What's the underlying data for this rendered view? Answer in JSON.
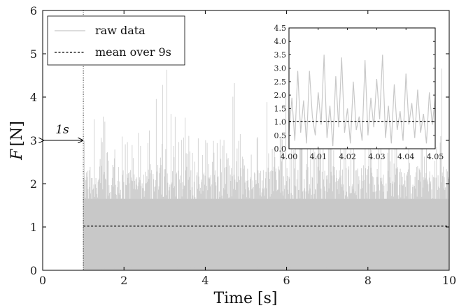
{
  "chart_data": [
    {
      "type": "line",
      "xlabel": "Time [s]",
      "ylabel": "F [N]",
      "xlim": [
        0,
        10
      ],
      "ylim": [
        0,
        6
      ],
      "xticks": [
        "0",
        "2",
        "4",
        "6",
        "8",
        "10"
      ],
      "yticks": [
        "0",
        "1",
        "2",
        "3",
        "4",
        "5",
        "6"
      ],
      "grid": false,
      "legend_placement": "top-left",
      "series": [
        {
          "name": "raw data",
          "style": "noisy-band",
          "color": "#c8c8c8",
          "x_start": 1.0,
          "x_end": 10.0,
          "min": 0.0,
          "core_upper": 3.0,
          "peak_upper": 4.7
        },
        {
          "name": "mean over 9s",
          "style": "dashed",
          "color": "#000000",
          "x": [
            1.0,
            10.0
          ],
          "y": [
            1.02,
            1.02
          ]
        }
      ],
      "annotations": {
        "vline_x": 1.0,
        "arrow_y": 3.0,
        "arrow_x": [
          0.0,
          1.0
        ],
        "arrow_label": "1s"
      }
    },
    {
      "type": "line",
      "inset": true,
      "xlim": [
        4.0,
        4.05
      ],
      "ylim": [
        0.0,
        4.5
      ],
      "xticks": [
        "4.00",
        "4.01",
        "4.02",
        "4.03",
        "4.04",
        "4.05"
      ],
      "yticks": [
        "0.0",
        "0.5",
        "1.0",
        "1.5",
        "2.0",
        "2.5",
        "3.0",
        "3.5",
        "4.0",
        "4.5"
      ],
      "series": [
        {
          "name": "raw data",
          "color": "#c8c8c8",
          "x": [
            4.0,
            4.001,
            4.002,
            4.003,
            4.004,
            4.005,
            4.006,
            4.007,
            4.008,
            4.009,
            4.01,
            4.011,
            4.012,
            4.013,
            4.014,
            4.015,
            4.016,
            4.017,
            4.018,
            4.019,
            4.02,
            4.021,
            4.022,
            4.023,
            4.024,
            4.025,
            4.026,
            4.027,
            4.028,
            4.029,
            4.03,
            4.031,
            4.032,
            4.033,
            4.034,
            4.035,
            4.036,
            4.037,
            4.038,
            4.039,
            4.04,
            4.041,
            4.042,
            4.043,
            4.044,
            4.045,
            4.046,
            4.047,
            4.048,
            4.049,
            4.05
          ],
          "y": [
            0.6,
            1.9,
            0.3,
            2.9,
            0.6,
            1.8,
            0.2,
            2.9,
            1.2,
            0.5,
            2.1,
            0.9,
            3.5,
            0.4,
            1.6,
            0.1,
            2.7,
            0.8,
            3.4,
            0.6,
            1.5,
            0.2,
            2.5,
            0.7,
            1.2,
            0.3,
            3.3,
            0.5,
            1.9,
            0.8,
            2.6,
            1.1,
            3.5,
            0.4,
            1.6,
            0.2,
            2.4,
            0.7,
            1.4,
            0.3,
            2.8,
            0.9,
            1.7,
            0.4,
            2.2,
            0.6,
            1.3,
            0.2,
            2.1,
            0.9,
            1.9
          ]
        },
        {
          "name": "mean over 9s",
          "style": "dashed",
          "color": "#000000",
          "x": [
            4.0,
            4.05
          ],
          "y": [
            1.02,
            1.02
          ]
        }
      ]
    }
  ],
  "legend": {
    "raw_label": "raw data",
    "mean_label": "mean over 9s"
  },
  "labels": {
    "xlabel": "Time [s]",
    "ylabel_var": "F",
    "ylabel_unit": "[N]",
    "arrow": "1s"
  }
}
